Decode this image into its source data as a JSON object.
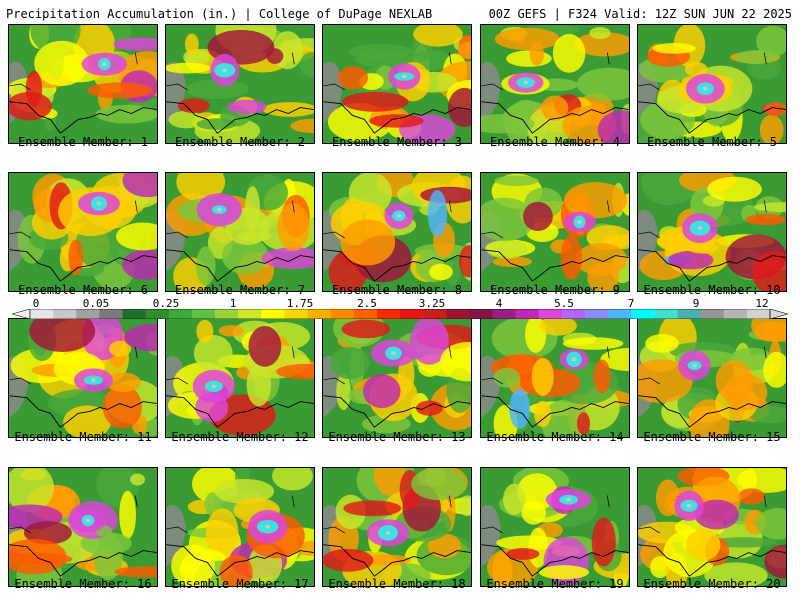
{
  "header": {
    "left": "Precipitation Accumulation (in.) | College of DuPage NEXLAB",
    "right": "00Z GEFS | F324 Valid: 12Z SUN JUN 22 2025"
  },
  "members": [
    {
      "label": "Ensemble Member: 1"
    },
    {
      "label": "Ensemble Member: 2"
    },
    {
      "label": "Ensemble Member: 3"
    },
    {
      "label": "Ensemble Member: 4"
    },
    {
      "label": "Ensemble Member: 5"
    },
    {
      "label": "Ensemble Member: 6"
    },
    {
      "label": "Ensemble Member: 7"
    },
    {
      "label": "Ensemble Member: 8"
    },
    {
      "label": "Ensemble Member: 9"
    },
    {
      "label": "Ensemble Member: 10"
    },
    {
      "label": "Ensemble Member: 11"
    },
    {
      "label": "Ensemble Member: 12"
    },
    {
      "label": "Ensemble Member: 13"
    },
    {
      "label": "Ensemble Member: 14"
    },
    {
      "label": "Ensemble Member: 15"
    },
    {
      "label": "Ensemble Member: 16"
    },
    {
      "label": "Ensemble Member: 17"
    },
    {
      "label": "Ensemble Member: 18"
    },
    {
      "label": "Ensemble Member: 19"
    },
    {
      "label": "Ensemble Member: 20"
    }
  ],
  "legend": {
    "labels": [
      "0",
      "0.05",
      "0.25",
      "1",
      "1.75",
      "2.5",
      "3.25",
      "4",
      "5.5",
      "7",
      "9",
      "12"
    ],
    "colors": [
      "#e6e6e6",
      "#c8c8c8",
      "#a0a0a0",
      "#7a7a7a",
      "#1f6e2a",
      "#2f8f2f",
      "#3fa83a",
      "#60c040",
      "#9ad23c",
      "#d2e628",
      "#ffff00",
      "#ffd700",
      "#ffb000",
      "#ff8c00",
      "#ff6400",
      "#ff2800",
      "#e61414",
      "#c81e1e",
      "#a01432",
      "#82144b",
      "#9b1e82",
      "#be28b4",
      "#dc46dc",
      "#b464ff",
      "#8c8cff",
      "#50b4ff",
      "#00ffff",
      "#40e0d0",
      "#4ab0b0",
      "#969696",
      "#b4b4b4",
      "#d2d2d2"
    ]
  }
}
